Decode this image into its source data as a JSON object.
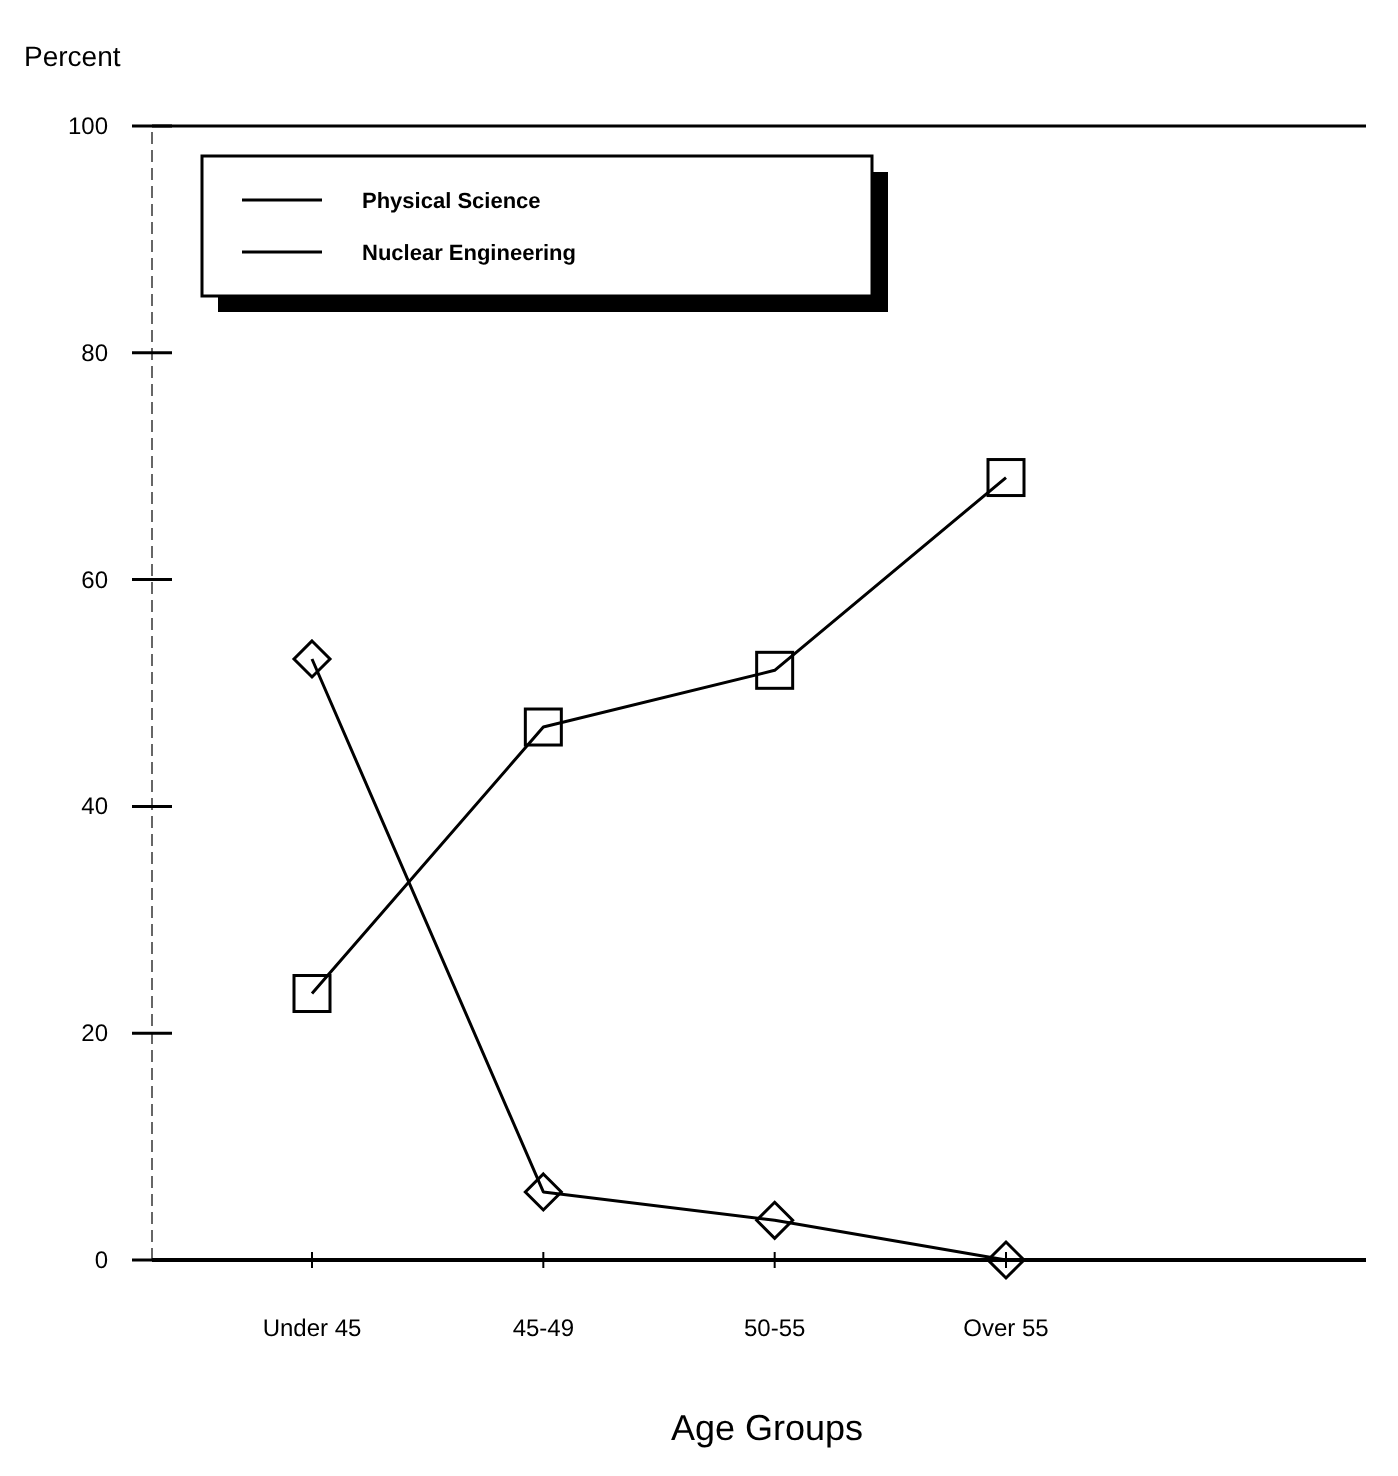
{
  "chart_data": {
    "type": "line",
    "ylabel": "Percent",
    "xlabel": "Age Groups",
    "categories": [
      "Under 45",
      "45-49",
      "50-55",
      "Over 55"
    ],
    "series": [
      {
        "name": "Physical Science",
        "color": "#000000",
        "marker": "square",
        "values": [
          23.5,
          47,
          52,
          69
        ]
      },
      {
        "name": "Nuclear Engineering",
        "color": "#000000",
        "marker": "diamond",
        "values": [
          53,
          6,
          3.5,
          0
        ]
      }
    ],
    "ylim": [
      0,
      100
    ],
    "yticks": [
      0,
      20,
      40,
      60,
      80,
      100
    ],
    "grid": false,
    "legend": "top left",
    "line_style": "solid"
  }
}
